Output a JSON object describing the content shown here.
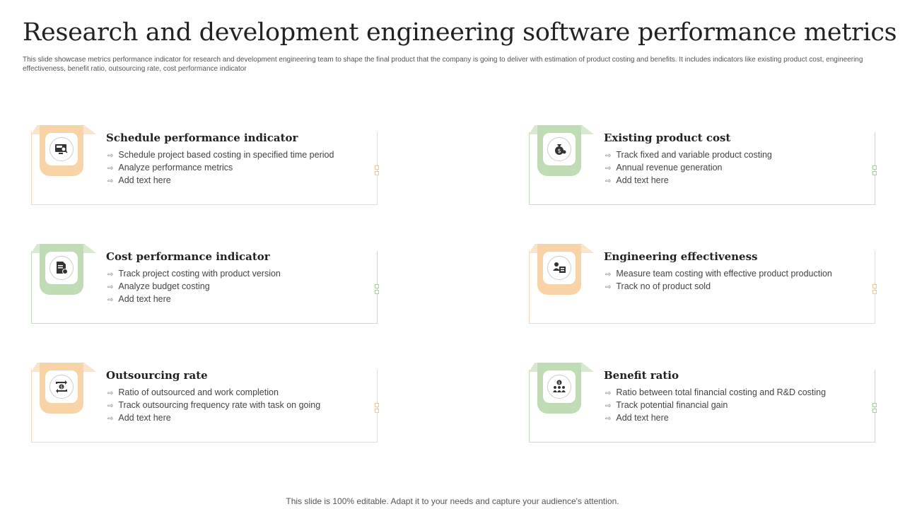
{
  "title": "Research and development engineering software performance metrics",
  "subtitle": "This slide showcase metrics performance indicator for research and development engineering team to shape the final product that the company is going to deliver with estimation of product costing and benefits. It includes indicators like existing product cost, engineering effectiveness, benefit ratio, outsourcing rate, cost performance indicator",
  "cards": [
    {
      "heading": "Schedule performance indicator",
      "icon": "monitor-search-icon",
      "color": "#f9d3a8",
      "items": [
        "Schedule project based costing in specified time period",
        "Analyze performance  metrics",
        "Add text here"
      ]
    },
    {
      "heading": "Existing product cost",
      "icon": "money-bag-icon",
      "color": "#bfdcb5",
      "items": [
        "Track fixed and variable  product costing",
        "Annual revenue  generation",
        "Add text here"
      ]
    },
    {
      "heading": "Cost performance indicator",
      "icon": "document-cost-icon",
      "color": "#bfdcb5",
      "items": [
        "Track project costing with product version",
        "Analyze budget costing",
        "Add text here"
      ]
    },
    {
      "heading": "Engineering effectiveness",
      "icon": "team-production-icon",
      "color": "#f9d3a8",
      "items": [
        "Measure team costing with effective  product production",
        "Track no of product sold"
      ]
    },
    {
      "heading": "Outsourcing rate",
      "icon": "currency-exchange-icon",
      "color": "#f9d3a8",
      "items": [
        "Ratio of outsourced and work completion",
        "Track outsourcing frequency  rate with task on going",
        "Add text here"
      ]
    },
    {
      "heading": "Benefit ratio",
      "icon": "benefit-group-icon",
      "color": "#bfdcb5",
      "items": [
        "Ratio between total financial costing and R&D costing",
        "Track potential financial gain",
        "Add text here"
      ]
    }
  ],
  "footer": "This slide is 100% editable. Adapt it to your needs and capture your audience's attention."
}
